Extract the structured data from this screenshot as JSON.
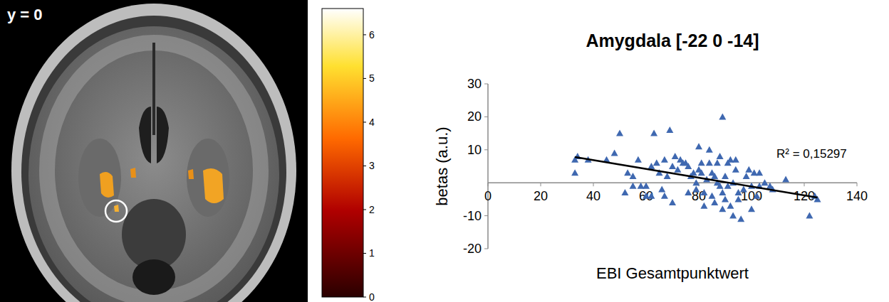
{
  "brain_image": {
    "slice_label": "y = 0",
    "colorbar": {
      "range": [
        0,
        6.6
      ],
      "ticks": [
        0,
        1,
        2,
        3,
        4,
        5,
        6
      ]
    }
  },
  "chart_data": {
    "type": "scatter",
    "title": "Amygdala [-22 0 -14]",
    "x_label": "EBI Gesamtpunktwert",
    "y_label": "betas (a.u.)",
    "xlim": [
      0,
      140
    ],
    "ylim": [
      -20,
      30
    ],
    "xticks": [
      0,
      20,
      40,
      60,
      80,
      100,
      120,
      140
    ],
    "yticks": [
      -20,
      -10,
      10,
      20,
      30
    ],
    "color": "#3f68b0",
    "marker": "triangle",
    "x": [
      33,
      33,
      34,
      38,
      45,
      48,
      50,
      52,
      53,
      55,
      55,
      57,
      58,
      60,
      60,
      62,
      62,
      63,
      64,
      65,
      66,
      67,
      67,
      68,
      69,
      70,
      70,
      71,
      72,
      73,
      74,
      75,
      76,
      76,
      77,
      78,
      79,
      79,
      80,
      80,
      81,
      81,
      82,
      82,
      83,
      84,
      84,
      85,
      85,
      86,
      86,
      87,
      87,
      88,
      88,
      89,
      89,
      89,
      90,
      90,
      91,
      91,
      92,
      92,
      93,
      93,
      94,
      94,
      95,
      95,
      96,
      97,
      98,
      99,
      100,
      100,
      101,
      102,
      103,
      103,
      105,
      107,
      108,
      113,
      122,
      124,
      125
    ],
    "values": [
      3,
      7,
      8,
      7,
      7,
      9,
      15,
      -3,
      3,
      2,
      -1,
      7,
      -1,
      -4,
      -1,
      5,
      -4,
      15,
      6,
      3,
      -2,
      -4,
      7,
      2,
      16,
      -6,
      5,
      8,
      4,
      7,
      6,
      6,
      5,
      -3,
      2,
      3,
      -2,
      0,
      4,
      11,
      3,
      6,
      -3,
      -7,
      1,
      6,
      10,
      3,
      -4,
      -6,
      2,
      6,
      0,
      8,
      -1,
      20,
      -3,
      -8,
      -5,
      2,
      6,
      -1,
      -7,
      7,
      -10,
      0,
      4,
      7,
      -3,
      -5,
      -11,
      -2,
      2,
      4,
      -1,
      -8,
      3,
      -4,
      3,
      -1,
      0,
      -1,
      -2,
      1,
      -10,
      -4,
      -5
    ],
    "trendline": {
      "x": [
        33,
        125
      ],
      "values": [
        7.8,
        -4.5
      ],
      "color": "#000000",
      "line_style": "solid"
    },
    "annotations": [
      "R² = 0,15297"
    ]
  }
}
